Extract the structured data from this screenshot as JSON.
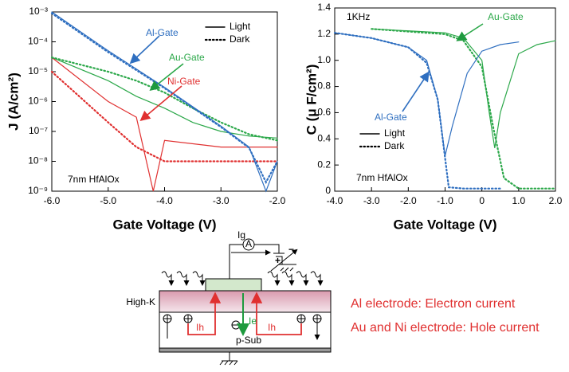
{
  "chart_data": [
    {
      "type": "line",
      "x_label": "Gate Voltage (V)",
      "y_label": "J (A/cm²)",
      "ylog": true,
      "xlim": [
        -6,
        -2
      ],
      "ylim": [
        1e-09,
        0.001
      ],
      "xticks": [
        {
          "value": -6,
          "label": "-6.0"
        },
        {
          "value": -5,
          "label": "-5.0"
        },
        {
          "value": -4,
          "label": "-4.0"
        },
        {
          "value": -3,
          "label": "-3.0"
        },
        {
          "value": -2,
          "label": "-2.0"
        }
      ],
      "yticks": [
        {
          "value": 1e-09,
          "label": "10⁻⁹"
        },
        {
          "value": 1e-08,
          "label": "10⁻⁸"
        },
        {
          "value": 1e-07,
          "label": "10⁻⁷"
        },
        {
          "value": 1e-06,
          "label": "10⁻⁶"
        },
        {
          "value": 1e-05,
          "label": "10⁻⁵"
        },
        {
          "value": 0.0001,
          "label": "10⁻⁴"
        },
        {
          "value": 0.001,
          "label": "10⁻³"
        }
      ],
      "legend": [
        {
          "label": "Light",
          "style": "solid"
        },
        {
          "label": "Dark",
          "style": "dotted"
        }
      ],
      "series": [
        {
          "color": "#2f6fc0",
          "style": "solid",
          "x": [
            -6,
            -5,
            -4,
            -3,
            -2.5,
            -2.2,
            -2
          ],
          "values": [
            0.001,
            5e-05,
            3e-06,
            1.5e-07,
            3e-08,
            1e-09,
            1e-08
          ]
        },
        {
          "color": "#2f6fc0",
          "style": "dotted",
          "x": [
            -6,
            -5,
            -4,
            -3,
            -2.5,
            -2.2,
            -2
          ],
          "values": [
            0.0009,
            4.5e-05,
            2.8e-06,
            1.4e-07,
            2.8e-08,
            2e-09,
            1e-08
          ]
        },
        {
          "color": "#2ca84a",
          "style": "solid",
          "x": [
            -6,
            -5,
            -4.5,
            -4,
            -3.5,
            -3,
            -2.5,
            -2
          ],
          "values": [
            3e-05,
            5e-06,
            1.5e-06,
            6e-07,
            2e-07,
            1e-07,
            7e-08,
            6e-08
          ]
        },
        {
          "color": "#2ca84a",
          "style": "dotted",
          "x": [
            -6,
            -5,
            -4.5,
            -4,
            -3.5,
            -3,
            -2.5,
            -2
          ],
          "values": [
            3e-05,
            1e-05,
            5e-06,
            2e-06,
            6e-07,
            2e-07,
            8e-08,
            5e-08
          ]
        },
        {
          "color": "#e03030",
          "style": "solid",
          "x": [
            -6,
            -5,
            -4.5,
            -4.2,
            -4,
            -3,
            -2
          ],
          "values": [
            3e-05,
            1e-06,
            3e-07,
            1e-09,
            5e-08,
            3e-08,
            3e-08
          ]
        },
        {
          "color": "#e03030",
          "style": "dotted",
          "x": [
            -6,
            -5,
            -4.5,
            -4,
            -3,
            -2
          ],
          "values": [
            1e-05,
            2e-07,
            3e-08,
            1e-08,
            1e-08,
            1e-08
          ]
        }
      ],
      "annotations": [
        {
          "text": "Al-Gate",
          "color": "#2f6fc0"
        },
        {
          "text": "Au-Gate",
          "color": "#2ca84a"
        },
        {
          "text": "Ni-Gate",
          "color": "#e03030"
        },
        {
          "text": "7nm HfAlOx",
          "color": "#000000"
        }
      ]
    },
    {
      "type": "line",
      "x_label": "Gate Voltage (V)",
      "y_label": "C (μ F/cm²)",
      "xlim": [
        -4,
        2
      ],
      "ylim": [
        0,
        1.4
      ],
      "xticks": [
        {
          "value": -4,
          "label": "-4.0"
        },
        {
          "value": -3,
          "label": "-3.0"
        },
        {
          "value": -2,
          "label": "-2.0"
        },
        {
          "value": -1,
          "label": "-1.0"
        },
        0,
        {
          "value": 1,
          "label": "1.0"
        },
        {
          "value": 2,
          "label": "2.0"
        }
      ],
      "yticks": [
        0,
        0.2,
        0.4,
        0.6,
        0.8,
        {
          "value": 1,
          "label": "1.0"
        },
        1.2,
        1.4
      ],
      "legend": [
        {
          "label": "Light",
          "style": "solid"
        },
        {
          "label": "Dark",
          "style": "dotted"
        }
      ],
      "series": [
        {
          "color": "#2f6fc0",
          "style": "solid",
          "x": [
            -4,
            -3,
            -2,
            -1.5,
            -1.2,
            -1,
            -0.8,
            -0.4,
            0,
            0.5,
            1
          ],
          "values": [
            1.21,
            1.17,
            1.1,
            1,
            0.7,
            0.27,
            0.5,
            0.9,
            1.07,
            1.12,
            1.14
          ]
        },
        {
          "color": "#2f6fc0",
          "style": "dotted",
          "x": [
            -4,
            -3,
            -2,
            -1.5,
            -1.2,
            -0.9,
            -0.5,
            0.5
          ],
          "values": [
            1.21,
            1.17,
            1.1,
            0.98,
            0.7,
            0.03,
            0.02,
            0.02
          ]
        },
        {
          "color": "#2ca84a",
          "style": "solid",
          "x": [
            -3,
            -1,
            -0.5,
            0,
            0.2,
            0.35,
            0.5,
            1,
            1.5,
            2
          ],
          "values": [
            1.24,
            1.21,
            1.17,
            1,
            0.6,
            0.33,
            0.6,
            1.05,
            1.12,
            1.15
          ]
        },
        {
          "color": "#2ca84a",
          "style": "dotted",
          "x": [
            -3,
            -1,
            -0.5,
            0,
            0.3,
            0.6,
            1,
            2
          ],
          "values": [
            1.24,
            1.2,
            1.15,
            0.95,
            0.5,
            0.1,
            0.02,
            0.02
          ]
        }
      ],
      "annotations": [
        {
          "text": "1KHz",
          "color": "#000000"
        },
        {
          "text": "Au-Gate",
          "color": "#2ca84a"
        },
        {
          "text": "Al-Gate",
          "color": "#2f6fc0"
        },
        {
          "text": "7nm HfAlOx",
          "color": "#000000"
        }
      ]
    }
  ],
  "diagram": {
    "current_gate": "Ig",
    "ammeter": "A",
    "minus": "−",
    "plus": "+",
    "layer": "High-K",
    "hole_left": "Ih",
    "electron": "Ie",
    "hole_right": "Ih",
    "substrate": "p-Sub",
    "note_1": "Al electrode: Electron current",
    "note_2": "Au and Ni electrode: Hole current"
  }
}
